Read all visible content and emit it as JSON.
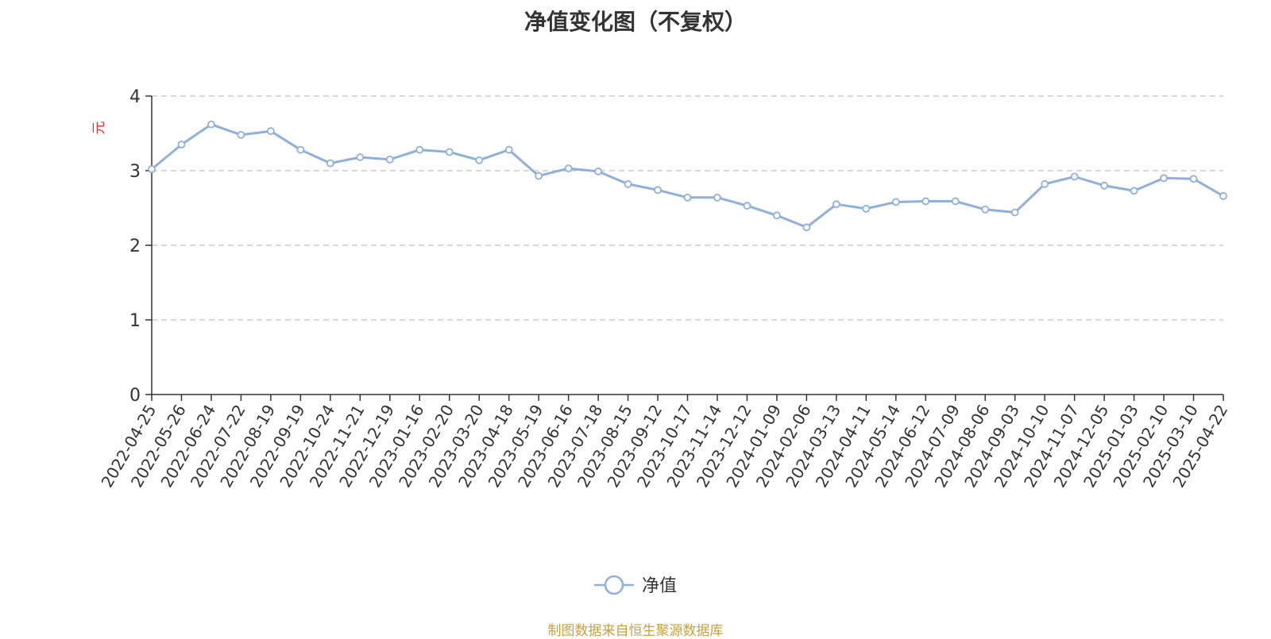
{
  "chart_data": {
    "type": "line",
    "title": "净值变化图（不复权）",
    "ylabel": "元",
    "ylim": [
      0,
      4
    ],
    "yticks": [
      0,
      1,
      2,
      3,
      4
    ],
    "grid": true,
    "legend_position": "bottom-center",
    "x_tick_labels": [
      "2022-04-25",
      "2022-05-26",
      "2022-06-24",
      "2022-07-22",
      "2022-08-19",
      "2022-09-19",
      "2022-10-24",
      "2022-11-21",
      "2022-12-19",
      "2023-01-16",
      "2023-02-20",
      "2023-03-20",
      "2023-04-18",
      "2023-05-19",
      "2023-06-16",
      "2023-07-18",
      "2023-08-15",
      "2023-09-12",
      "2023-10-17",
      "2023-11-14",
      "2023-12-12",
      "2024-01-09",
      "2024-02-06",
      "2024-03-13",
      "2024-04-11",
      "2024-05-14",
      "2024-06-12",
      "2024-07-09",
      "2024-08-06",
      "2024-09-03",
      "2024-10-10",
      "2024-11-07",
      "2024-12-05",
      "2025-01-03",
      "2025-02-10",
      "2025-03-10",
      "2025-04-22"
    ],
    "series": [
      {
        "name": "净值",
        "color": "#8fb0dc",
        "values": [
          3.02,
          3.35,
          3.62,
          3.48,
          3.53,
          3.28,
          3.1,
          3.18,
          3.15,
          3.28,
          3.25,
          3.14,
          3.28,
          2.93,
          3.03,
          2.99,
          2.82,
          2.74,
          2.64,
          2.64,
          2.53,
          2.4,
          2.24,
          2.55,
          2.49,
          2.58,
          2.59,
          2.59,
          2.48,
          2.44,
          2.82,
          2.92,
          2.8,
          2.73,
          2.9,
          2.89,
          2.66
        ]
      }
    ],
    "source_note": "制图数据来自恒生聚源数据库"
  }
}
